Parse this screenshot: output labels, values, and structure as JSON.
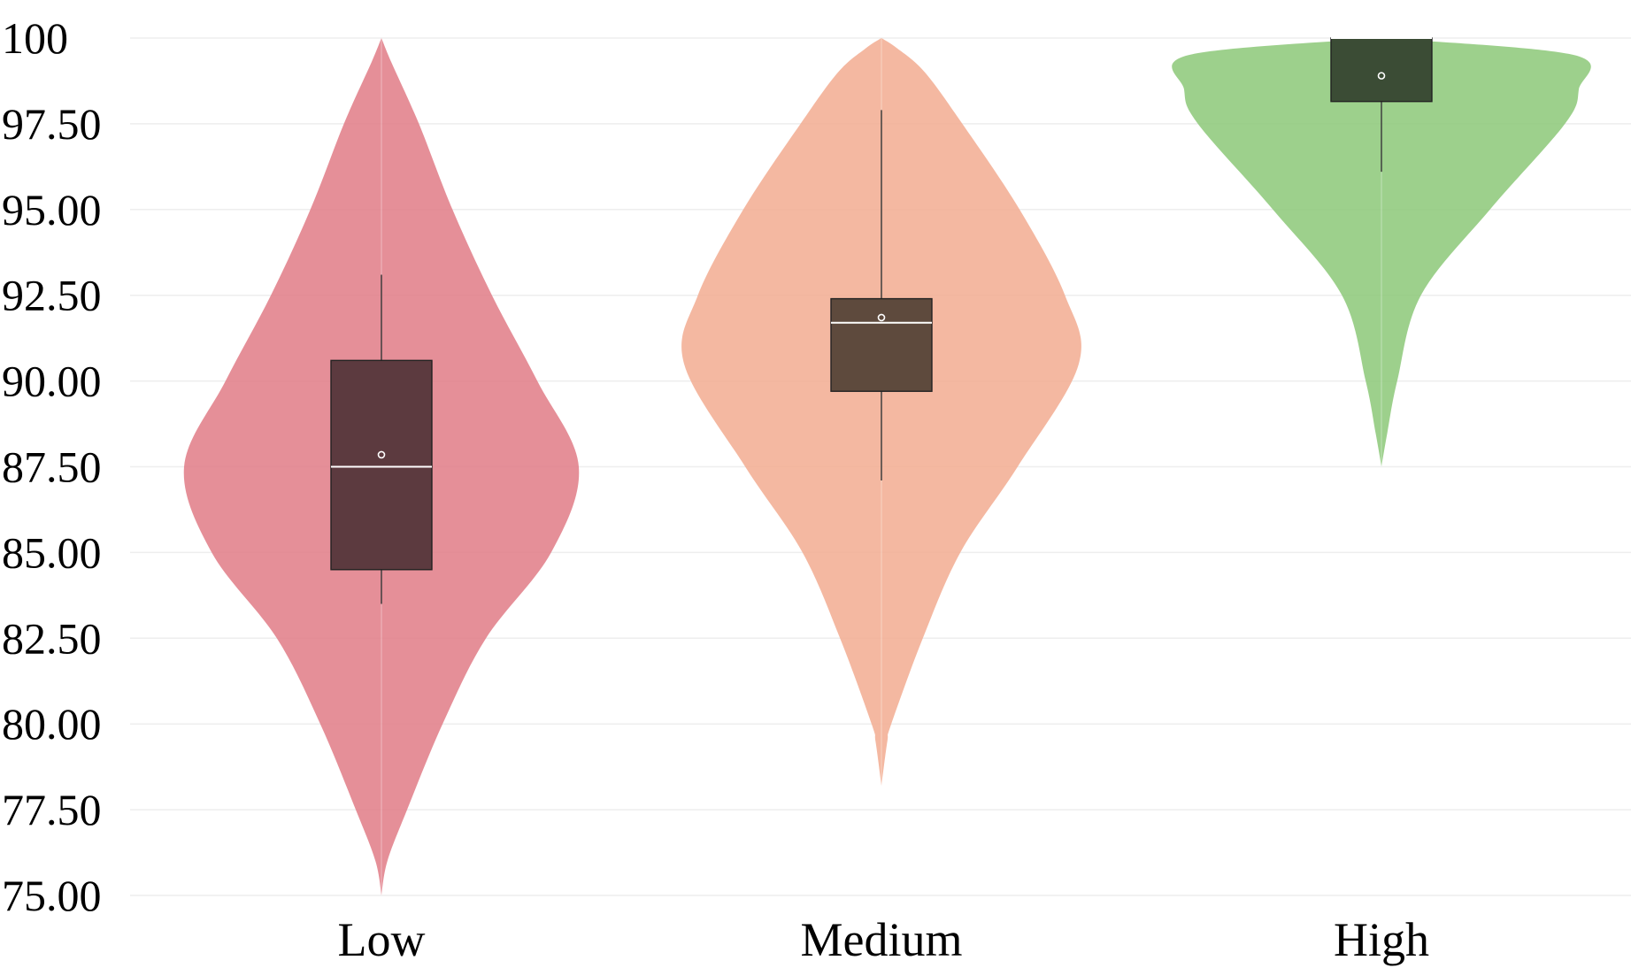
{
  "chart_data": {
    "type": "violin",
    "title": "",
    "xlabel": "",
    "ylabel": "",
    "ylim": [
      75,
      100
    ],
    "yticks": [
      75,
      77.5,
      80,
      82.5,
      85,
      87.5,
      90,
      92.5,
      95,
      97.5,
      100
    ],
    "ytick_labels": [
      "75.00",
      "77.50",
      "80.00",
      "82.50",
      "85.00",
      "87.50",
      "90.00",
      "92.50",
      "95.00",
      "97.50",
      "100"
    ],
    "grid": true,
    "legend": "none",
    "categories": [
      "Low",
      "Medium",
      "High"
    ],
    "series": [
      {
        "category": "Low",
        "color": "#e07b86",
        "box_color": "#5c3a3f",
        "min": 75.0,
        "max": 100.0,
        "box": {
          "q1": 84.5,
          "median": 87.5,
          "q3": 90.6,
          "mean": 87.85,
          "whisker_low": 83.5,
          "whisker_high": 93.1
        },
        "density": [
          [
            75.0,
            0.0
          ],
          [
            76.0,
            0.03
          ],
          [
            77.5,
            0.13
          ],
          [
            80.0,
            0.31
          ],
          [
            82.5,
            0.53
          ],
          [
            85.0,
            0.86
          ],
          [
            87.5,
            1.0
          ],
          [
            90.0,
            0.79
          ],
          [
            92.5,
            0.56
          ],
          [
            95.0,
            0.36
          ],
          [
            97.5,
            0.19
          ],
          [
            99.3,
            0.05
          ],
          [
            100.0,
            0.0
          ]
        ]
      },
      {
        "category": "Medium",
        "color": "#f2ac90",
        "box_color": "#5e4a3d",
        "min": 78.2,
        "max": 100.0,
        "box": {
          "q1": 89.7,
          "median": 91.7,
          "q3": 92.4,
          "mean": 91.85,
          "whisker_low": 87.1,
          "whisker_high": 97.9
        },
        "density": [
          [
            78.2,
            0.0
          ],
          [
            79.5,
            0.03
          ],
          [
            80.0,
            0.05
          ],
          [
            82.5,
            0.21
          ],
          [
            85.0,
            0.4
          ],
          [
            87.5,
            0.69
          ],
          [
            90.5,
            1.0
          ],
          [
            92.5,
            0.93
          ],
          [
            95.0,
            0.7
          ],
          [
            97.5,
            0.41
          ],
          [
            99.0,
            0.22
          ],
          [
            99.7,
            0.08
          ],
          [
            100.0,
            0.0
          ]
        ]
      },
      {
        "category": "High",
        "color": "#8cc878",
        "box_color": "#3b4c35",
        "min": 87.5,
        "max": 100.0,
        "box": {
          "q1": 98.15,
          "median": 100.0,
          "q3": 100.0,
          "mean": 98.9,
          "whisker_low": 96.1,
          "whisker_high": 100.0
        },
        "density": [
          [
            87.5,
            0.0
          ],
          [
            88.5,
            0.03
          ],
          [
            90.0,
            0.08
          ],
          [
            92.5,
            0.2
          ],
          [
            95.0,
            0.55
          ],
          [
            97.5,
            0.93
          ],
          [
            98.5,
            1.0
          ],
          [
            99.5,
            0.98
          ],
          [
            100.0,
            0.0
          ]
        ]
      }
    ]
  }
}
